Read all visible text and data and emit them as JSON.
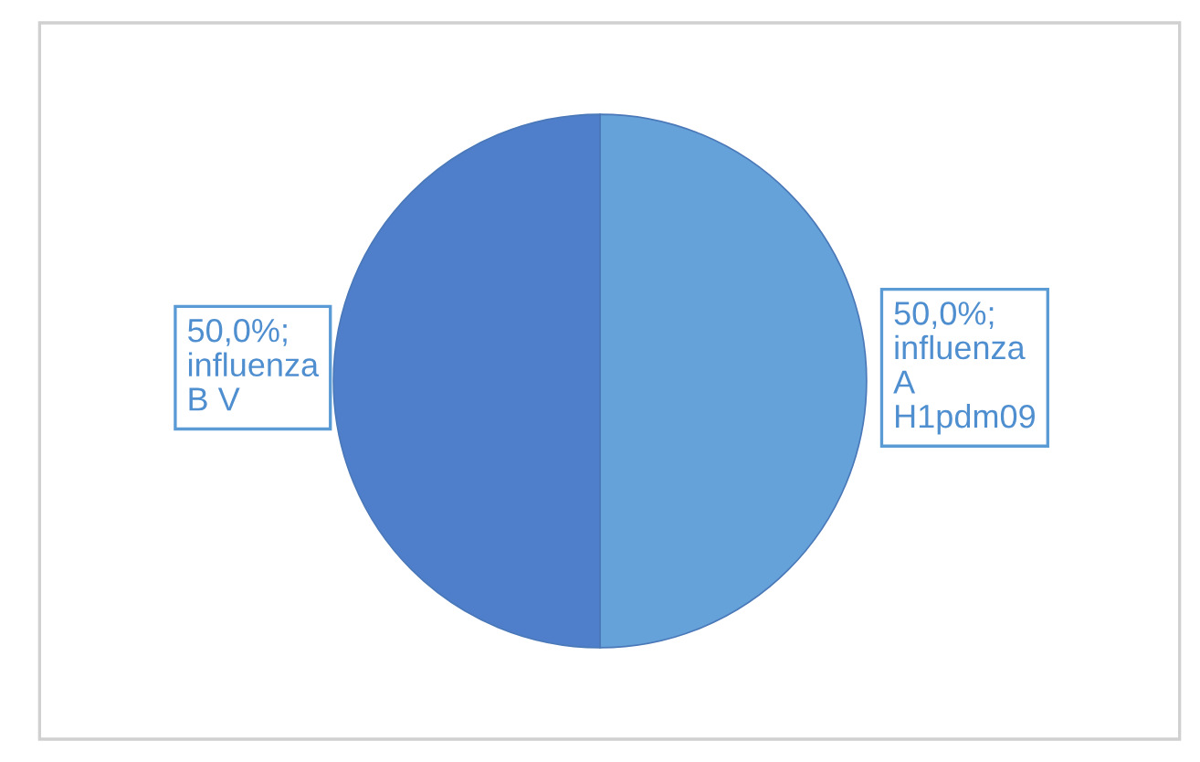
{
  "chart_data": {
    "type": "pie",
    "categories": [
      "influenza A H1pdm09",
      "influenza B V"
    ],
    "values": [
      50,
      50
    ],
    "colors": [
      "#65a2d9",
      "#4f7fca"
    ],
    "value_labels": [
      "50,0%;",
      "50,0%;"
    ]
  }
}
